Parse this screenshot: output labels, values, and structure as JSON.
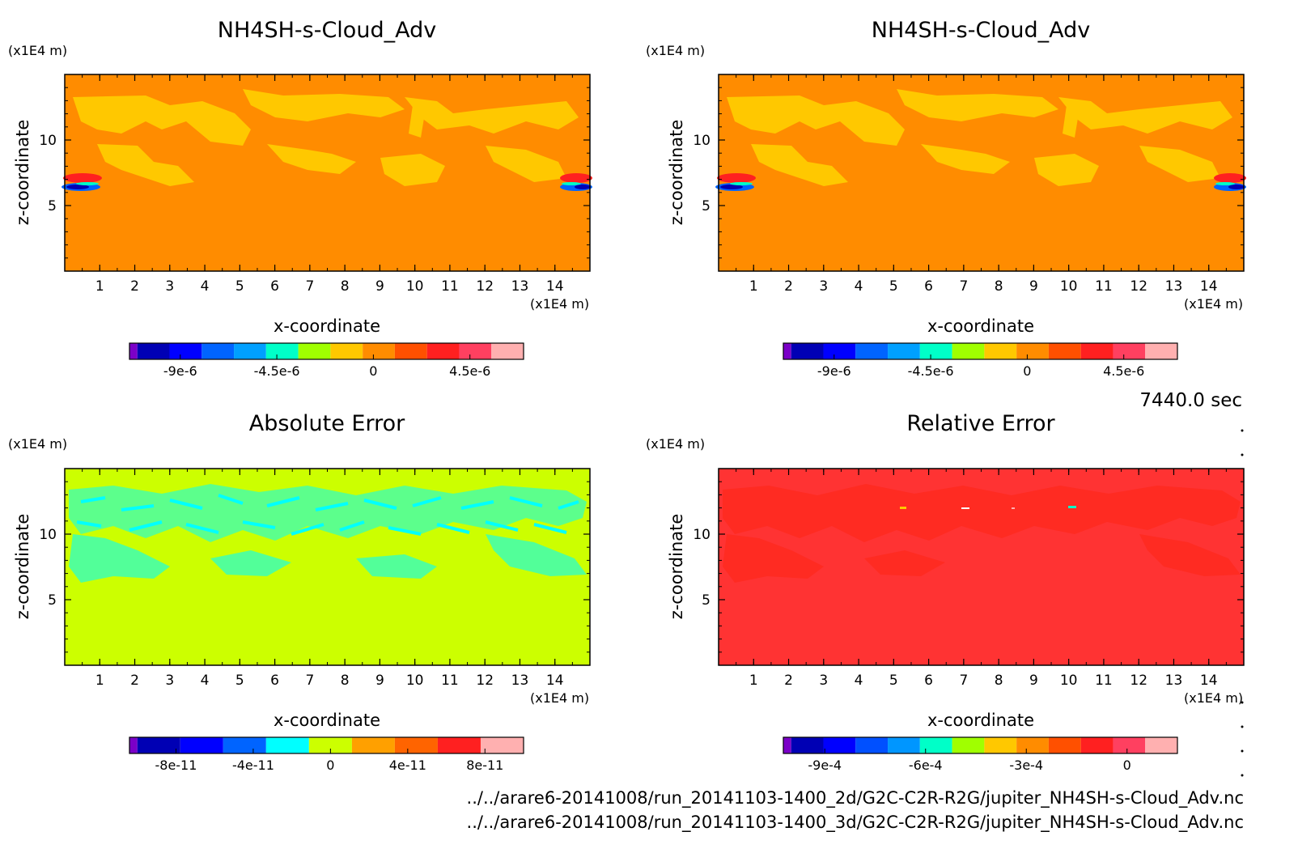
{
  "figure": {
    "time_label": "7440.0 sec",
    "files": [
      "../../arare6-20141008/run_20141103-1400_2d/G2C-C2R-R2G/jupiter_NH4SH-s-Cloud_Adv.nc",
      "../../arare6-20141008/run_20141103-1400_3d/G2C-C2R-R2G/jupiter_NH4SH-s-Cloud_Adv.nc"
    ]
  },
  "colors": {
    "bg_orange": "#ff8c00",
    "yellow": "#ffc800",
    "lime": "#ccff00",
    "cyan": "#00ffff",
    "red": "#ff3333"
  },
  "chart_data": [
    {
      "type": "heatmap",
      "title": "NH4SH-s-Cloud_Adv",
      "xlabel": "x-coordinate",
      "ylabel": "z-coordinate",
      "x_unit": "(x1E4 m)",
      "y_unit": "(x1E4 m)",
      "xlim": [
        0,
        15
      ],
      "ylim": [
        0,
        15
      ],
      "x_ticks": [
        1,
        2,
        3,
        4,
        5,
        6,
        7,
        8,
        9,
        10,
        11,
        12,
        13,
        14
      ],
      "y_ticks": [
        5,
        10
      ],
      "background": "#ff8c00",
      "colorbar": {
        "colors": [
          "#7b00c8",
          "#0000b4",
          "#0000ff",
          "#0064ff",
          "#00a0ff",
          "#00ffc8",
          "#a0ff00",
          "#ffc800",
          "#ff8c00",
          "#ff5000",
          "#ff2020",
          "#ff4060",
          "#ffb0b0"
        ],
        "tick_labels": [
          "-9e-6",
          "-4.5e-6",
          "0",
          "4.5e-6"
        ],
        "tick_values": [
          -9e-06,
          -4.5e-06,
          0,
          4.5e-06
        ],
        "vmin": -1.1e-05,
        "vmax": 7e-06
      }
    },
    {
      "type": "heatmap",
      "title": "NH4SH-s-Cloud_Adv",
      "xlabel": "x-coordinate",
      "ylabel": "z-coordinate",
      "x_unit": "(x1E4 m)",
      "y_unit": "(x1E4 m)",
      "xlim": [
        0,
        15
      ],
      "ylim": [
        0,
        15
      ],
      "x_ticks": [
        1,
        2,
        3,
        4,
        5,
        6,
        7,
        8,
        9,
        10,
        11,
        12,
        13,
        14
      ],
      "y_ticks": [
        5,
        10
      ],
      "background": "#ff8c00",
      "colorbar": {
        "colors": [
          "#7b00c8",
          "#0000b4",
          "#0000ff",
          "#0064ff",
          "#00a0ff",
          "#00ffc8",
          "#a0ff00",
          "#ffc800",
          "#ff8c00",
          "#ff5000",
          "#ff2020",
          "#ff4060",
          "#ffb0b0"
        ],
        "tick_labels": [
          "-9e-6",
          "-4.5e-6",
          "0",
          "4.5e-6"
        ],
        "tick_values": [
          -9e-06,
          -4.5e-06,
          0,
          4.5e-06
        ],
        "vmin": -1.1e-05,
        "vmax": 7e-06
      }
    },
    {
      "type": "heatmap",
      "title": "Absolute Error",
      "xlabel": "x-coordinate",
      "ylabel": "z-coordinate",
      "x_unit": "(x1E4 m)",
      "y_unit": "(x1E4 m)",
      "xlim": [
        0,
        15
      ],
      "ylim": [
        0,
        15
      ],
      "x_ticks": [
        1,
        2,
        3,
        4,
        5,
        6,
        7,
        8,
        9,
        10,
        11,
        12,
        13,
        14
      ],
      "y_ticks": [
        5,
        10
      ],
      "background": "#ccff00",
      "colorbar": {
        "colors": [
          "#7b00c8",
          "#0000b4",
          "#0000ff",
          "#0064ff",
          "#00ffff",
          "#ccff00",
          "#ffa000",
          "#ff6400",
          "#ff2020",
          "#ffb0b0"
        ],
        "tick_labels": [
          "-8e-11",
          "-4e-11",
          "0",
          "4e-11",
          "8e-11"
        ],
        "tick_values": [
          -8e-11,
          -4e-11,
          0,
          4e-11,
          8e-11
        ],
        "vmin": -1e-10,
        "vmax": 1e-10
      }
    },
    {
      "type": "heatmap",
      "title": "Relative Error",
      "xlabel": "x-coordinate",
      "ylabel": "z-coordinate",
      "x_unit": "(x1E4 m)",
      "y_unit": "(x1E4 m)",
      "xlim": [
        0,
        15
      ],
      "ylim": [
        0,
        15
      ],
      "x_ticks": [
        1,
        2,
        3,
        4,
        5,
        6,
        7,
        8,
        9,
        10,
        11,
        12,
        13,
        14
      ],
      "y_ticks": [
        5,
        10
      ],
      "background": "#ff3333",
      "colorbar": {
        "colors": [
          "#7b00c8",
          "#0000b4",
          "#0000ff",
          "#0050ff",
          "#0096ff",
          "#00ffc8",
          "#a0ff00",
          "#ffc800",
          "#ff8c00",
          "#ff5000",
          "#ff2020",
          "#ff4060",
          "#ffb0b0"
        ],
        "tick_labels": [
          "-9e-4",
          "-6e-4",
          "-3e-4",
          "0"
        ],
        "tick_values": [
          -0.0009,
          -0.0006,
          -0.0003,
          0
        ],
        "vmin": -0.001,
        "vmax": 0.00015
      }
    }
  ]
}
